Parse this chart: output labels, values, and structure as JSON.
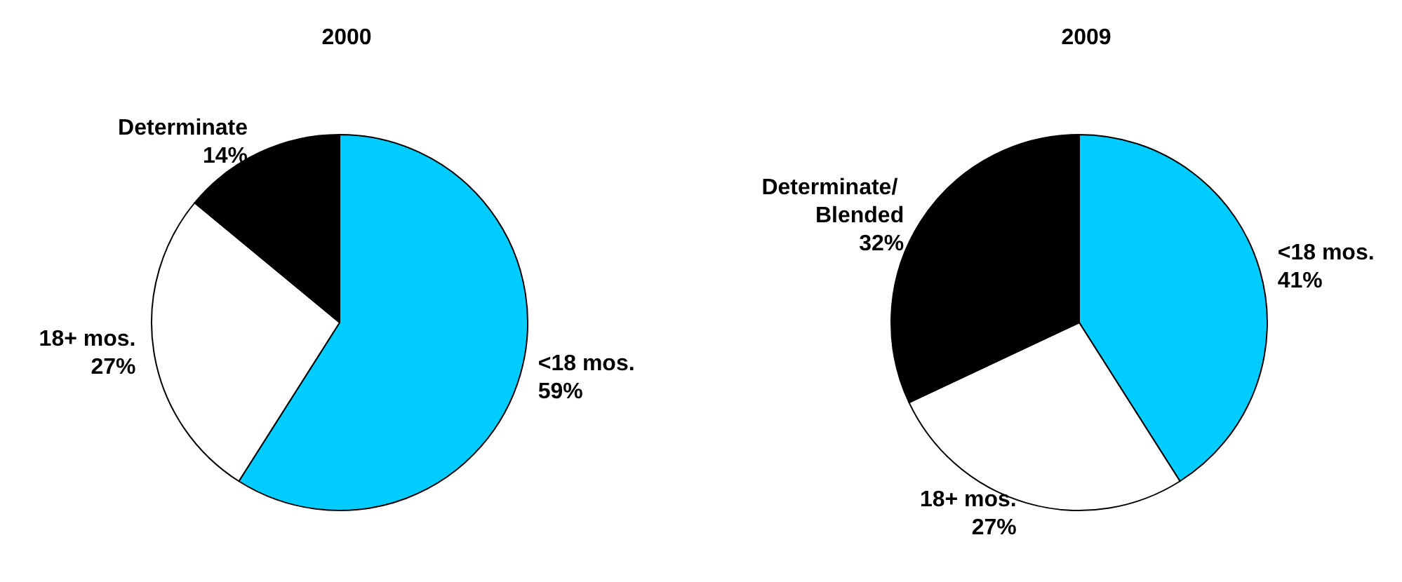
{
  "chart_data": [
    {
      "type": "pie",
      "title": "2000",
      "categories": [
        "<18 mos.",
        "18+ mos.",
        "Determinate"
      ],
      "values": [
        59,
        27,
        14
      ],
      "value_labels": [
        "59%",
        "27%",
        "14%"
      ],
      "colors": [
        "#00ccff",
        "#ffffff",
        "#000000"
      ],
      "legend": false
    },
    {
      "type": "pie",
      "title": "2009",
      "categories": [
        "<18 mos.",
        "18+ mos.",
        "Determinate/ Blended"
      ],
      "values": [
        41,
        27,
        32
      ],
      "value_labels": [
        "41%",
        "27%",
        "32%"
      ],
      "colors": [
        "#00ccff",
        "#ffffff",
        "#000000"
      ],
      "legend": false
    }
  ]
}
